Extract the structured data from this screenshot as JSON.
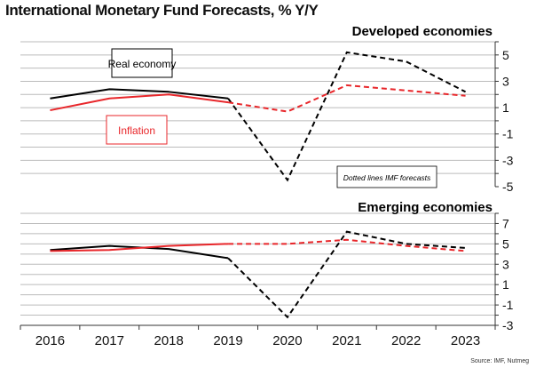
{
  "title": "International Monetary Fund Forecasts, % Y/Y",
  "source": "Source: IMF, Nutmeg",
  "colors": {
    "real": "#000000",
    "inflation": "#e8262a",
    "grid": "#bbbbbb"
  },
  "chart_data": [
    {
      "type": "line",
      "title": "Developed economies",
      "categories": [
        "2016",
        "2017",
        "2018",
        "2019",
        "2020",
        "2021",
        "2022",
        "2023"
      ],
      "ylim": [
        -5,
        6
      ],
      "yticks": [
        -5,
        -3,
        -1,
        1,
        3,
        5
      ],
      "grid": true,
      "annotation": "Dotted lines IMF forecasts",
      "series": [
        {
          "name": "Real economy",
          "key": "real",
          "values": [
            1.7,
            2.4,
            2.2,
            1.7,
            -4.5,
            5.2,
            4.5,
            2.2
          ],
          "forecast_from_index": 3
        },
        {
          "name": "Inflation",
          "key": "inflation",
          "values": [
            0.8,
            1.7,
            2.0,
            1.4,
            0.7,
            2.7,
            2.3,
            1.9
          ],
          "forecast_from_index": 3
        }
      ]
    },
    {
      "type": "line",
      "title": "Emerging economies",
      "categories": [
        "2016",
        "2017",
        "2018",
        "2019",
        "2020",
        "2021",
        "2022",
        "2023"
      ],
      "ylim": [
        -3,
        8
      ],
      "yticks": [
        -3,
        -1,
        1,
        3,
        5,
        7
      ],
      "grid": true,
      "series": [
        {
          "name": "Real economy",
          "key": "real",
          "values": [
            4.4,
            4.8,
            4.5,
            3.6,
            -2.2,
            6.2,
            5.0,
            4.6
          ],
          "forecast_from_index": 3
        },
        {
          "name": "Inflation",
          "key": "inflation",
          "values": [
            4.3,
            4.4,
            4.8,
            5.0,
            5.0,
            5.4,
            4.8,
            4.3
          ],
          "forecast_from_index": 3
        }
      ]
    }
  ]
}
